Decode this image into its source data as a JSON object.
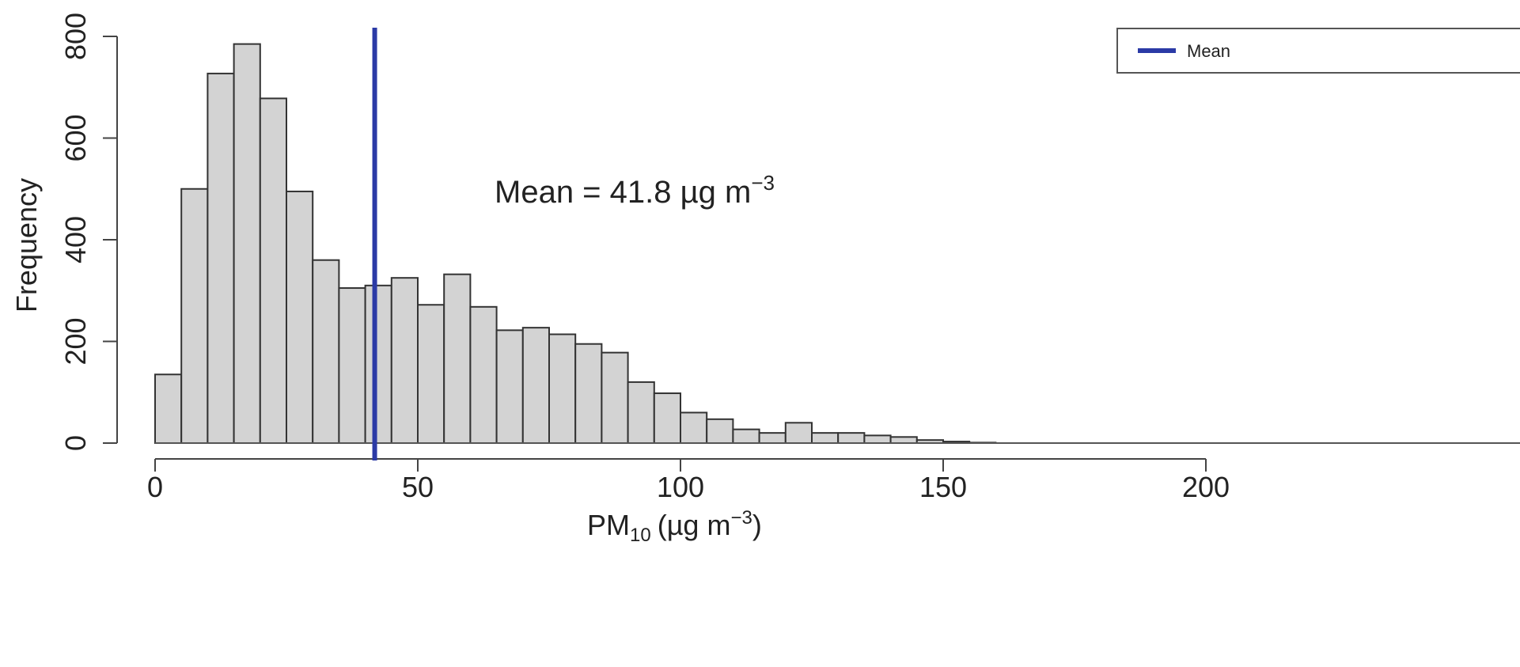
{
  "chart_data": {
    "type": "bar",
    "xlabel": "PM",
    "xlabel_subscript": "10",
    "xlabel_units": "(µg m",
    "xlabel_units_sup": "−3",
    "xlabel_units_close": ")",
    "ylabel": "Frequency",
    "xlim": [
      0,
      210
    ],
    "ylim": [
      0,
      800
    ],
    "x_ticks": [
      0,
      50,
      100,
      150,
      200
    ],
    "y_ticks": [
      0,
      200,
      400,
      600,
      800
    ],
    "bin_width": 5,
    "bins": [
      {
        "start": 0,
        "end": 5,
        "count": 135
      },
      {
        "start": 5,
        "end": 10,
        "count": 500
      },
      {
        "start": 10,
        "end": 15,
        "count": 727
      },
      {
        "start": 15,
        "end": 20,
        "count": 785
      },
      {
        "start": 20,
        "end": 25,
        "count": 678
      },
      {
        "start": 25,
        "end": 30,
        "count": 495
      },
      {
        "start": 30,
        "end": 35,
        "count": 360
      },
      {
        "start": 35,
        "end": 40,
        "count": 305
      },
      {
        "start": 40,
        "end": 45,
        "count": 310
      },
      {
        "start": 45,
        "end": 50,
        "count": 325
      },
      {
        "start": 50,
        "end": 55,
        "count": 272
      },
      {
        "start": 55,
        "end": 60,
        "count": 332
      },
      {
        "start": 60,
        "end": 65,
        "count": 268
      },
      {
        "start": 65,
        "end": 70,
        "count": 222
      },
      {
        "start": 70,
        "end": 75,
        "count": 227
      },
      {
        "start": 75,
        "end": 80,
        "count": 214
      },
      {
        "start": 80,
        "end": 85,
        "count": 195
      },
      {
        "start": 85,
        "end": 90,
        "count": 178
      },
      {
        "start": 90,
        "end": 95,
        "count": 120
      },
      {
        "start": 95,
        "end": 100,
        "count": 98
      },
      {
        "start": 100,
        "end": 105,
        "count": 60
      },
      {
        "start": 105,
        "end": 110,
        "count": 47
      },
      {
        "start": 110,
        "end": 115,
        "count": 27
      },
      {
        "start": 115,
        "end": 120,
        "count": 20
      },
      {
        "start": 120,
        "end": 125,
        "count": 40
      },
      {
        "start": 125,
        "end": 130,
        "count": 20
      },
      {
        "start": 130,
        "end": 135,
        "count": 20
      },
      {
        "start": 135,
        "end": 140,
        "count": 15
      },
      {
        "start": 140,
        "end": 145,
        "count": 12
      },
      {
        "start": 145,
        "end": 150,
        "count": 6
      },
      {
        "start": 150,
        "end": 155,
        "count": 3
      },
      {
        "start": 155,
        "end": 160,
        "count": 1
      }
    ],
    "mean_line": {
      "x": 41.8,
      "color": "#2b3aa6"
    },
    "annotation": {
      "prefix": "Mean = 41.8 µg m",
      "sup": "−3"
    },
    "legend": {
      "label": "Mean",
      "placement": "top-right"
    },
    "bar_fill": "#d3d3d3",
    "bar_stroke": "#333333"
  }
}
